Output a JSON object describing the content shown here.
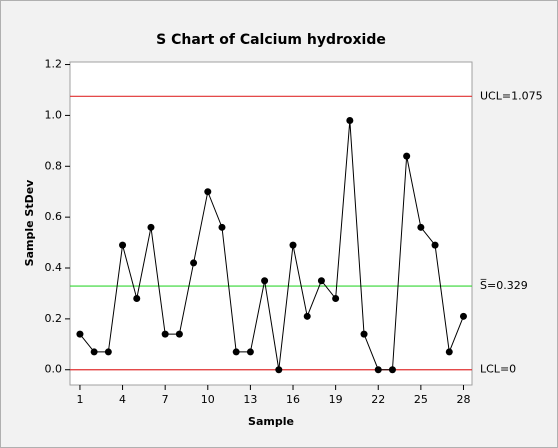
{
  "chart_data": {
    "type": "line",
    "title": "S Chart of Calcium hydroxide",
    "xlabel": "Sample",
    "ylabel": "Sample StDev",
    "x": [
      1,
      2,
      3,
      4,
      5,
      6,
      7,
      8,
      9,
      10,
      11,
      12,
      13,
      14,
      15,
      16,
      17,
      18,
      19,
      20,
      21,
      22,
      23,
      24,
      25,
      26,
      27,
      28
    ],
    "series": [
      {
        "color": "#000000",
        "values": [
          0.14,
          0.07,
          0.07,
          0.49,
          0.28,
          0.56,
          0.14,
          0.14,
          0.42,
          0.7,
          0.56,
          0.07,
          0.07,
          0.35,
          0.0,
          0.49,
          0.21,
          0.35,
          0.28,
          0.98,
          0.14,
          0.0,
          0.0,
          0.84,
          0.56,
          0.49,
          0.07,
          0.21
        ]
      }
    ],
    "control_lines": [
      {
        "label": "UCL=1.075",
        "value": 1.075,
        "color": "#e03030"
      },
      {
        "label": "S̅=0.329",
        "value": 0.329,
        "color": "#33d633"
      },
      {
        "label": "LCL=0",
        "value": 0,
        "color": "#e03030"
      }
    ],
    "xlim": [
      0.3,
      28.6
    ],
    "xticks": [
      1,
      4,
      7,
      10,
      13,
      16,
      19,
      22,
      25,
      28
    ],
    "ylim": [
      -0.06,
      1.21
    ],
    "yticks": [
      {
        "value": 0,
        "label": "0.0"
      },
      0.2,
      0.4,
      0.6,
      0.8,
      {
        "value": 1,
        "label": "1.0"
      },
      1.2
    ]
  }
}
